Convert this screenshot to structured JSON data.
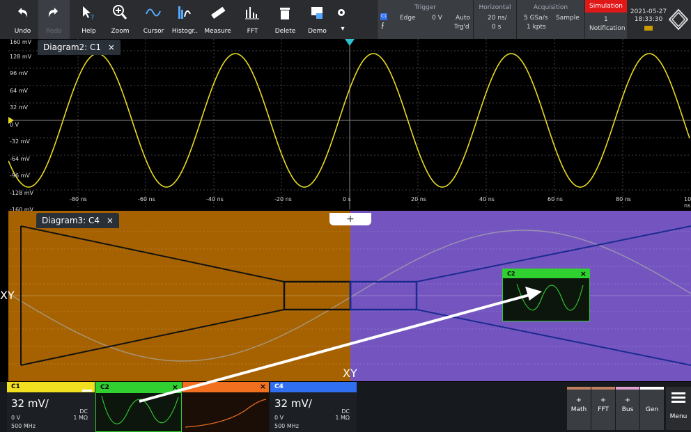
{
  "toolbar": {
    "undo": "Undo",
    "redo": "Redo",
    "help": "Help",
    "zoom": "Zoom",
    "cursor": "Cursor",
    "histogram": "Histogr..",
    "measure": "Measure",
    "fft": "FFT",
    "delete": "Delete",
    "demo": "Demo"
  },
  "trigger": {
    "header": "Trigger",
    "source": "C1",
    "type": "Edge",
    "level": "0 V",
    "mode": "Auto",
    "state": "Trg'd"
  },
  "horizontal": {
    "header": "Horizontal",
    "scale": "20 ns/",
    "position": "0 s"
  },
  "acquisition": {
    "header": "Acquisition",
    "rate": "5 GSa/s",
    "mode": "Sample",
    "length": "1 kpts"
  },
  "simulation": {
    "header": "Simulation",
    "count": "1",
    "label": "Notification"
  },
  "datetime": {
    "date": "2021-05-27",
    "time": "18:33:30"
  },
  "diagram2": {
    "tab": "Diagram2: C1",
    "close": "×",
    "ylabels": [
      "160 mV",
      "128 mV",
      "96 mV",
      "64 mV",
      "32 mV",
      "0 V",
      "-32 mV",
      "-64 mV",
      "-96 mV",
      "-128 mV",
      "-160 mV"
    ],
    "xlabels": [
      "-80 ns",
      "-60 ns",
      "-40 ns",
      "-20 ns",
      "0 s",
      "20 ns",
      "40 ns",
      "60 ns",
      "80 ns",
      "100 ns"
    ]
  },
  "diagram3": {
    "tab": "Diagram3: C4",
    "close": "×",
    "add": "+",
    "left_label": "XY",
    "bottom_label": "XY"
  },
  "drag_preview": {
    "name": "C2",
    "close": "×"
  },
  "channels": {
    "c1": {
      "name": "C1",
      "scale": "32 mV/",
      "coupling": "DC",
      "offset": "0 V",
      "impedance": "1 MΩ",
      "bandwidth": "500 MHz",
      "color": "#f0e020"
    },
    "c2": {
      "name": "C2",
      "close": "×",
      "color": "#30d030"
    },
    "c3": {
      "close": "×",
      "color": "#f07020"
    },
    "c4": {
      "name": "C4",
      "scale": "32 mV/",
      "coupling": "DC",
      "offset": "0 V",
      "impedance": "1 MΩ",
      "bandwidth": "500 MHz",
      "color": "#3070f0"
    }
  },
  "right_buttons": {
    "math": "Math",
    "fft": "FFT",
    "bus": "Bus",
    "gen": "Gen",
    "menu": "Menu",
    "plus": "+"
  }
}
